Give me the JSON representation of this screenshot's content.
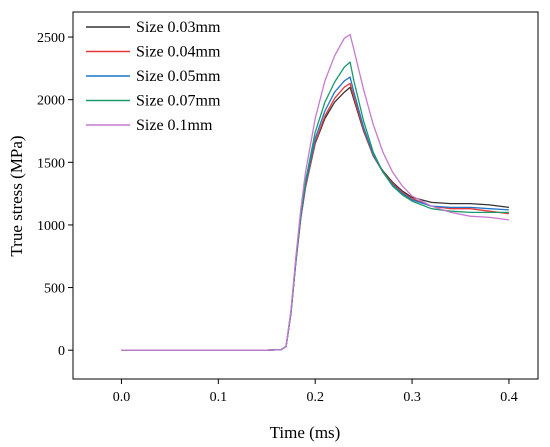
{
  "chart_data": {
    "type": "line",
    "title": "",
    "xlabel": "Time (ms)",
    "ylabel": "True stress (MPa)",
    "xlim": [
      -0.05,
      0.43
    ],
    "ylim": [
      -230,
      2700
    ],
    "x_ticks": [
      0.0,
      0.1,
      0.2,
      0.3,
      0.4
    ],
    "x_tick_labels": [
      "0.0",
      "0.1",
      "0.2",
      "0.3",
      "0.4"
    ],
    "y_ticks": [
      0,
      500,
      1000,
      1500,
      2000,
      2500
    ],
    "y_tick_labels": [
      "0",
      "500",
      "1000",
      "1500",
      "2000",
      "2500"
    ],
    "grid": false,
    "legend_position": "top-left",
    "series": [
      {
        "name": "Size 0.03mm",
        "color": "#333333",
        "x": [
          0.0,
          0.1,
          0.15,
          0.165,
          0.17,
          0.175,
          0.18,
          0.185,
          0.19,
          0.2,
          0.21,
          0.22,
          0.23,
          0.236,
          0.24,
          0.25,
          0.26,
          0.27,
          0.28,
          0.29,
          0.3,
          0.32,
          0.34,
          0.36,
          0.38,
          0.4
        ],
        "y": [
          0,
          0,
          0,
          5,
          30,
          300,
          700,
          1050,
          1300,
          1650,
          1850,
          1980,
          2060,
          2100,
          2000,
          1750,
          1550,
          1430,
          1340,
          1270,
          1220,
          1180,
          1170,
          1170,
          1160,
          1140
        ]
      },
      {
        "name": "Size 0.04mm",
        "color": "#e8393a",
        "x": [
          0.0,
          0.1,
          0.15,
          0.165,
          0.17,
          0.175,
          0.18,
          0.185,
          0.19,
          0.2,
          0.21,
          0.22,
          0.23,
          0.236,
          0.24,
          0.25,
          0.26,
          0.27,
          0.28,
          0.29,
          0.3,
          0.32,
          0.34,
          0.36,
          0.38,
          0.4
        ],
        "y": [
          0,
          0,
          0,
          5,
          30,
          300,
          700,
          1050,
          1300,
          1660,
          1870,
          2010,
          2100,
          2130,
          2020,
          1760,
          1550,
          1420,
          1330,
          1260,
          1210,
          1150,
          1130,
          1130,
          1110,
          1090
        ]
      },
      {
        "name": "Size 0.05mm",
        "color": "#1f77c9",
        "x": [
          0.0,
          0.1,
          0.15,
          0.165,
          0.17,
          0.175,
          0.18,
          0.185,
          0.19,
          0.2,
          0.21,
          0.22,
          0.23,
          0.236,
          0.24,
          0.25,
          0.26,
          0.27,
          0.28,
          0.29,
          0.3,
          0.32,
          0.34,
          0.36,
          0.38,
          0.4
        ],
        "y": [
          0,
          0,
          0,
          5,
          30,
          300,
          710,
          1060,
          1320,
          1690,
          1910,
          2060,
          2150,
          2180,
          2060,
          1780,
          1560,
          1420,
          1320,
          1250,
          1200,
          1150,
          1140,
          1140,
          1130,
          1120
        ]
      },
      {
        "name": "Size 0.07mm",
        "color": "#1a9a6a",
        "x": [
          0.0,
          0.1,
          0.15,
          0.165,
          0.17,
          0.175,
          0.18,
          0.185,
          0.19,
          0.2,
          0.21,
          0.22,
          0.23,
          0.236,
          0.24,
          0.25,
          0.26,
          0.27,
          0.28,
          0.29,
          0.3,
          0.32,
          0.34,
          0.36,
          0.38,
          0.4
        ],
        "y": [
          0,
          0,
          0,
          5,
          30,
          310,
          720,
          1080,
          1350,
          1740,
          1980,
          2140,
          2260,
          2300,
          2150,
          1830,
          1580,
          1420,
          1310,
          1240,
          1190,
          1130,
          1110,
          1100,
          1100,
          1100
        ]
      },
      {
        "name": "Size 0.1mm",
        "color": "#c779d0",
        "x": [
          0.0,
          0.1,
          0.15,
          0.165,
          0.17,
          0.175,
          0.18,
          0.185,
          0.19,
          0.2,
          0.21,
          0.22,
          0.23,
          0.236,
          0.24,
          0.25,
          0.26,
          0.27,
          0.28,
          0.29,
          0.3,
          0.32,
          0.34,
          0.36,
          0.38,
          0.4
        ],
        "y": [
          0,
          0,
          0,
          5,
          30,
          320,
          740,
          1120,
          1420,
          1850,
          2150,
          2350,
          2490,
          2520,
          2400,
          2080,
          1800,
          1580,
          1420,
          1310,
          1230,
          1150,
          1100,
          1070,
          1060,
          1040
        ]
      }
    ]
  }
}
